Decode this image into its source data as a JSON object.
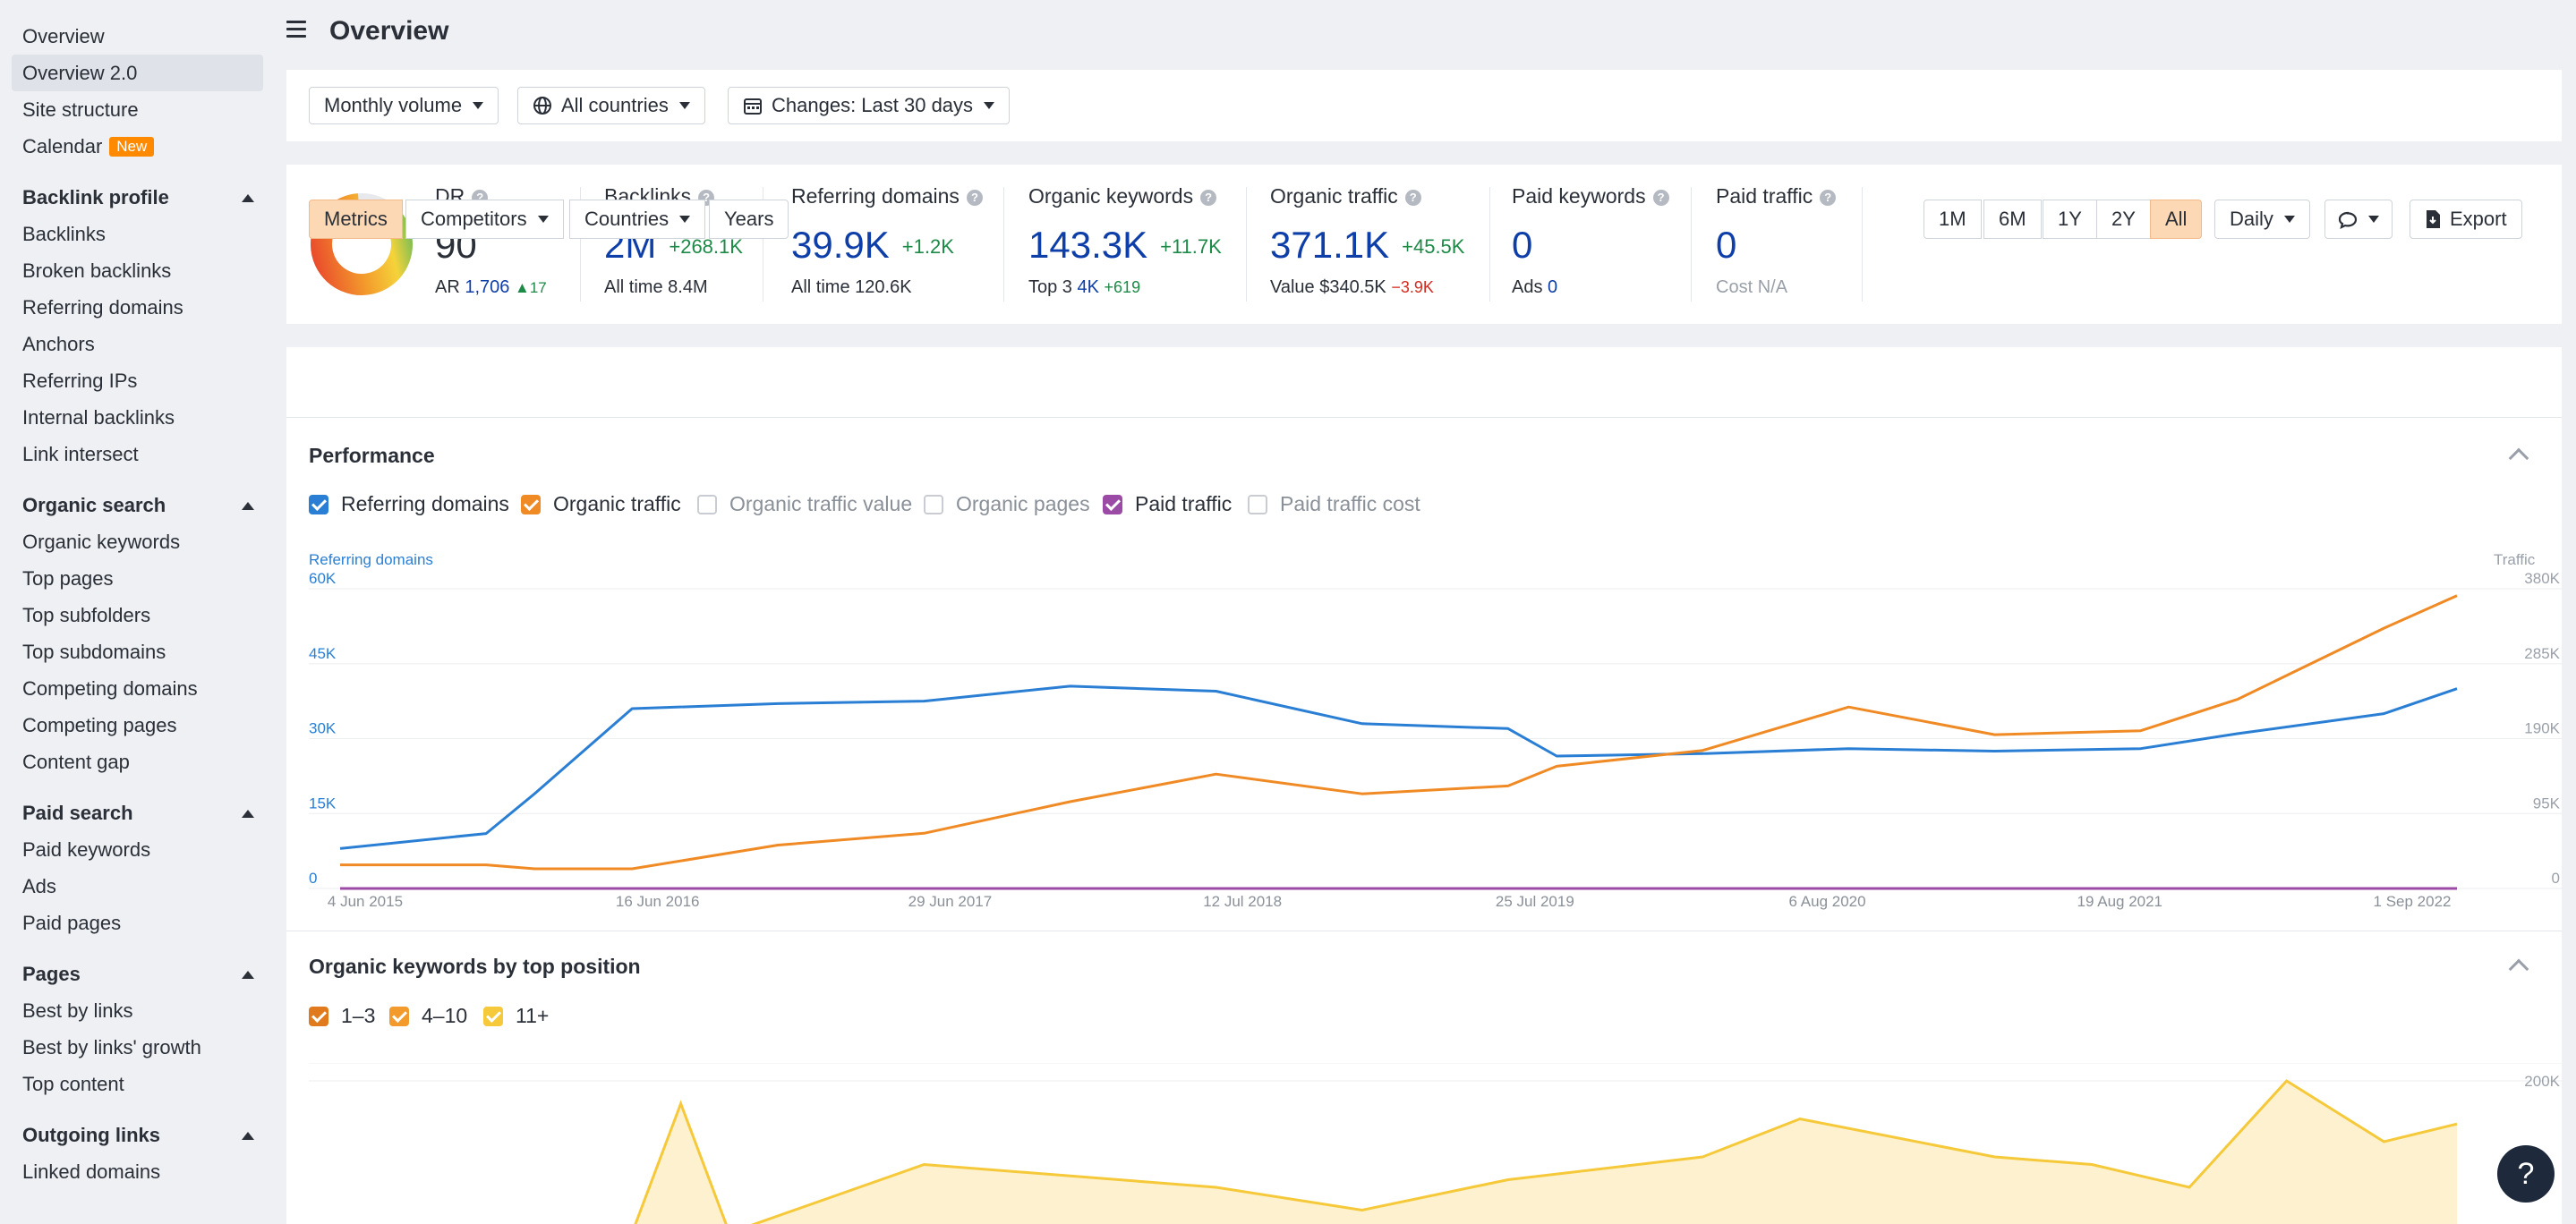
{
  "sidebar": {
    "top_items": [
      {
        "label": "Overview"
      },
      {
        "label": "Overview 2.0",
        "active": true
      },
      {
        "label": "Site structure"
      },
      {
        "label": "Calendar",
        "badge": "New"
      }
    ],
    "sections": [
      {
        "title": "Backlink profile",
        "items": [
          "Backlinks",
          "Broken backlinks",
          "Referring domains",
          "Anchors",
          "Referring IPs",
          "Internal backlinks",
          "Link intersect"
        ]
      },
      {
        "title": "Organic search",
        "items": [
          "Organic keywords",
          "Top pages",
          "Top subfolders",
          "Top subdomains",
          "Competing domains",
          "Competing pages",
          "Content gap"
        ]
      },
      {
        "title": "Paid search",
        "items": [
          "Paid keywords",
          "Ads",
          "Paid pages"
        ]
      },
      {
        "title": "Pages",
        "items": [
          "Best by links",
          "Best by links' growth",
          "Top content"
        ]
      },
      {
        "title": "Outgoing links",
        "items": [
          "Linked domains"
        ]
      }
    ]
  },
  "header": {
    "title": "Overview"
  },
  "filters": {
    "volume": "Monthly volume",
    "countries": "All countries",
    "changes": "Changes: Last 30 days"
  },
  "stats": {
    "dr": {
      "label": "DR",
      "value": "90",
      "ar_label": "AR",
      "ar_value": "1,706",
      "ar_delta": "17"
    },
    "backlinks": {
      "label": "Backlinks",
      "value": "2M",
      "delta": "+268.1K",
      "sub_label": "All time",
      "sub_value": "8.4M"
    },
    "refdomains": {
      "label": "Referring domains",
      "value": "39.9K",
      "delta": "+1.2K",
      "sub_label": "All time",
      "sub_value": "120.6K"
    },
    "orgkw": {
      "label": "Organic keywords",
      "value": "143.3K",
      "delta": "+11.7K",
      "sub_label": "Top 3",
      "sub_value": "4K",
      "sub_delta": "+619"
    },
    "orgtraffic": {
      "label": "Organic traffic",
      "value": "371.1K",
      "delta": "+45.5K",
      "sub_label": "Value",
      "sub_value": "$340.5K",
      "sub_delta": "−3.9K"
    },
    "paidkw": {
      "label": "Paid keywords",
      "value": "0",
      "sub_label": "Ads",
      "sub_value": "0"
    },
    "paidtraffic": {
      "label": "Paid traffic",
      "value": "0",
      "sub_label": "Cost",
      "sub_value": "N/A"
    }
  },
  "toolbar": {
    "tabs": [
      "Metrics",
      "Competitors",
      "Countries",
      "Years"
    ],
    "ranges": [
      "1M",
      "6M",
      "1Y",
      "2Y",
      "All"
    ],
    "interval": "Daily",
    "export": "Export"
  },
  "performance": {
    "title": "Performance",
    "legend": [
      {
        "label": "Referring domains",
        "checked": true,
        "color": "#2a7fd4"
      },
      {
        "label": "Organic traffic",
        "checked": true,
        "color": "#f08a24"
      },
      {
        "label": "Organic traffic value",
        "checked": false
      },
      {
        "label": "Organic pages",
        "checked": false
      },
      {
        "label": "Paid traffic",
        "checked": true,
        "color": "#9b4aa6"
      },
      {
        "label": "Paid traffic cost",
        "checked": false
      }
    ],
    "left_axis_title": "Referring domains",
    "right_axis_title": "Traffic",
    "left_ticks": [
      "60K",
      "45K",
      "30K",
      "15K",
      "0"
    ],
    "right_ticks": [
      "380K",
      "285K",
      "190K",
      "95K",
      "0"
    ],
    "x_ticks": [
      "4 Jun 2015",
      "16 Jun 2016",
      "29 Jun 2017",
      "12 Jul 2018",
      "25 Jul 2019",
      "6 Aug 2020",
      "19 Aug 2021",
      "1 Sep 2022"
    ]
  },
  "chart_data": [
    {
      "type": "line",
      "title": "Performance",
      "x": [
        "2015-06",
        "2015-12",
        "2016-02",
        "2016-06",
        "2016-12",
        "2017-06",
        "2017-12",
        "2018-06",
        "2018-12",
        "2019-06",
        "2019-08",
        "2020-02",
        "2020-08",
        "2021-02",
        "2021-08",
        "2021-12",
        "2022-06",
        "2022-09"
      ],
      "series": [
        {
          "name": "Referring domains",
          "axis": "left",
          "values": [
            8000,
            11000,
            19000,
            36000,
            37000,
            37500,
            40500,
            39500,
            33000,
            32000,
            26500,
            27000,
            28000,
            27500,
            28000,
            31000,
            35000,
            40000
          ]
        },
        {
          "name": "Organic traffic",
          "axis": "right",
          "values": [
            30000,
            30000,
            25000,
            25000,
            55000,
            70000,
            110000,
            145000,
            120000,
            130000,
            155000,
            175000,
            230000,
            195000,
            200000,
            240000,
            330000,
            371100
          ]
        },
        {
          "name": "Paid traffic",
          "axis": "right",
          "values": [
            0,
            0,
            0,
            0,
            0,
            0,
            0,
            0,
            0,
            0,
            0,
            0,
            0,
            0,
            0,
            0,
            0,
            0
          ]
        }
      ],
      "ylim_left": [
        0,
        60000
      ],
      "ylim_right": [
        0,
        380000
      ]
    },
    {
      "type": "area",
      "title": "Organic keywords by top position",
      "x": [
        "2015-06",
        "2016-06",
        "2016-08",
        "2016-10",
        "2017-06",
        "2018-06",
        "2018-12",
        "2019-06",
        "2020-02",
        "2020-06",
        "2021-02",
        "2021-06",
        "2021-10",
        "2022-02",
        "2022-06",
        "2022-09"
      ],
      "series": [
        {
          "name": "11+",
          "values": [
            0,
            0,
            170000,
            0,
            90000,
            60000,
            30000,
            70000,
            100000,
            150000,
            100000,
            90000,
            60000,
            200000,
            120000,
            143300
          ]
        }
      ],
      "ylim": [
        0,
        200000
      ]
    }
  ],
  "keywords_section": {
    "title": "Organic keywords by top position",
    "legend": [
      {
        "label": "1–3",
        "color": "#e07a1c"
      },
      {
        "label": "4–10",
        "color": "#f39a2c"
      },
      {
        "label": "11+",
        "color": "#f5c93a"
      }
    ],
    "right_ticks": [
      "200K"
    ]
  },
  "help": {
    "label": "?"
  }
}
